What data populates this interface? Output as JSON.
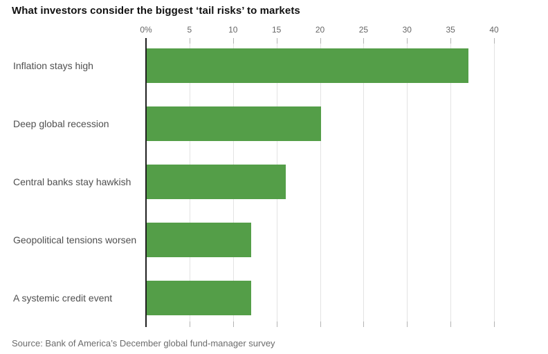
{
  "title": "What investors consider the biggest ‘tail risks’ to markets",
  "source": "Source: Bank of America’s December global fund-manager survey",
  "colors": {
    "bar": "#549e48",
    "zero_axis_line": "#1f1f1f",
    "gridline": "#e3e3e3",
    "tick": "#b3b3b3",
    "category_label": "#4f4f4f",
    "axis_label": "#666666",
    "title": "#111111",
    "source": "#6b6b6b",
    "background": "#ffffff"
  },
  "chart_data": {
    "type": "bar",
    "orientation": "horizontal",
    "title": "What investors consider the biggest ‘tail risks’ to markets",
    "categories": [
      "Inflation stays high",
      "Deep global recession",
      "Central banks stay hawkish",
      "Geopolitical tensions worsen",
      "A systemic credit event"
    ],
    "values": [
      37,
      20,
      16,
      12,
      12
    ],
    "unit": "%",
    "xlabel": "",
    "ylabel": "",
    "xlim": [
      0,
      40
    ],
    "tick_values": [
      0,
      5,
      10,
      15,
      20,
      25,
      30,
      35,
      40
    ],
    "tick_labels": [
      "0%",
      "5",
      "10",
      "15",
      "20",
      "25",
      "30",
      "35",
      "40"
    ],
    "grid": true,
    "legend": false,
    "axis_position": "top"
  }
}
